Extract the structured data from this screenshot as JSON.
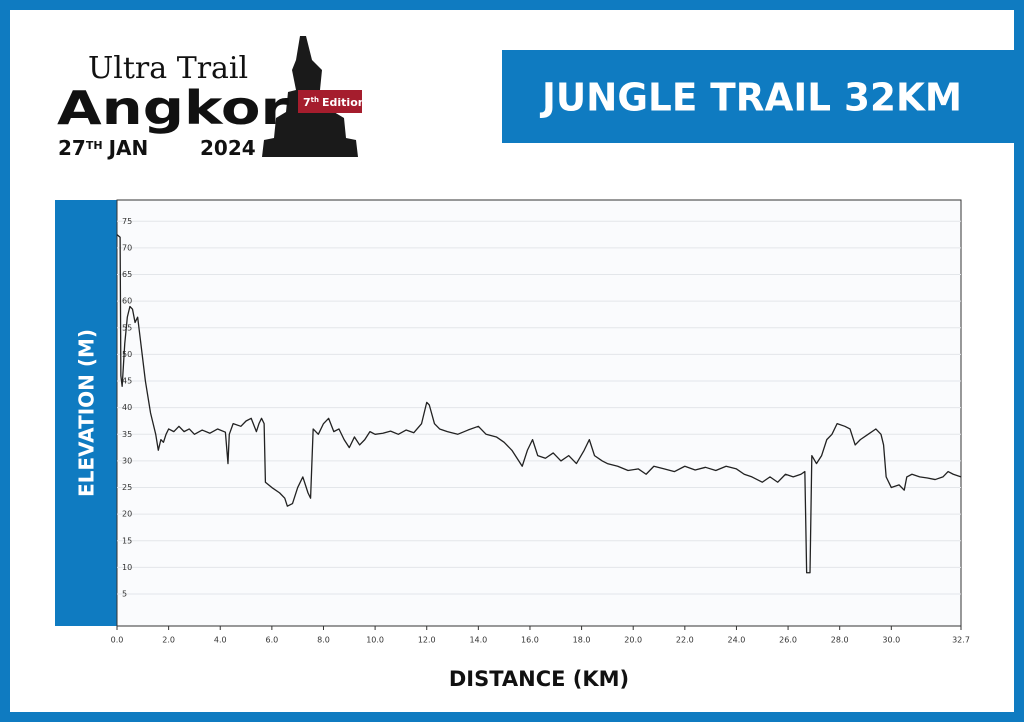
{
  "logo": {
    "line1": "Ultra Trail",
    "line2": "Angkor",
    "edition_number": "7",
    "edition_suffix": "th",
    "edition_word": "Edition",
    "day": "27",
    "day_suffix": "TH",
    "month": "JAN",
    "year": "2024"
  },
  "chart_data": {
    "type": "line",
    "title": "JUNGLE TRAIL 32KM",
    "x_label": "DISTANCE (KM)",
    "y_label": "ELEVATION (M)",
    "color": "#222222",
    "grid": true,
    "xlim": [
      0,
      32.7
    ],
    "ylim": [
      -1,
      79
    ],
    "xticks": [
      {
        "value": 0,
        "label": "0.0"
      },
      {
        "value": 2,
        "label": "2.0"
      },
      {
        "value": 4,
        "label": "4.0"
      },
      {
        "value": 6,
        "label": "6.0"
      },
      {
        "value": 8,
        "label": "8.0"
      },
      {
        "value": 10,
        "label": "10.0"
      },
      {
        "value": 12,
        "label": "12.0"
      },
      {
        "value": 14,
        "label": "14.0"
      },
      {
        "value": 16,
        "label": "16.0"
      },
      {
        "value": 18,
        "label": "18.0"
      },
      {
        "value": 20,
        "label": "20.0"
      },
      {
        "value": 22,
        "label": "22.0"
      },
      {
        "value": 24,
        "label": "24.0"
      },
      {
        "value": 26,
        "label": "26.0"
      },
      {
        "value": 28,
        "label": "28.0"
      },
      {
        "value": 30,
        "label": "30.0"
      },
      32.7
    ],
    "yticks": [
      5,
      10,
      15,
      20,
      25,
      30,
      35,
      40,
      45,
      50,
      55,
      60,
      65,
      70,
      75
    ],
    "x": [
      0,
      0.12,
      0.15,
      0.2,
      0.25,
      0.3,
      0.4,
      0.5,
      0.6,
      0.7,
      0.8,
      0.9,
      1.0,
      1.1,
      1.2,
      1.3,
      1.4,
      1.5,
      1.6,
      1.7,
      1.8,
      1.9,
      2.0,
      2.2,
      2.4,
      2.6,
      2.8,
      3.0,
      3.3,
      3.6,
      3.9,
      4.2,
      4.3,
      4.35,
      4.5,
      4.8,
      5.0,
      5.2,
      5.4,
      5.5,
      5.6,
      5.7,
      5.75,
      6.0,
      6.3,
      6.5,
      6.6,
      6.8,
      7.0,
      7.2,
      7.4,
      7.5,
      7.6,
      7.8,
      8.0,
      8.2,
      8.4,
      8.6,
      8.8,
      9.0,
      9.2,
      9.4,
      9.6,
      9.8,
      10.0,
      10.3,
      10.6,
      10.9,
      11.2,
      11.5,
      11.8,
      12.0,
      12.1,
      12.3,
      12.5,
      12.8,
      13.2,
      13.6,
      14.0,
      14.3,
      14.7,
      15.0,
      15.3,
      15.5,
      15.7,
      15.9,
      16.1,
      16.3,
      16.6,
      16.9,
      17.2,
      17.5,
      17.8,
      18.1,
      18.3,
      18.5,
      18.8,
      19.0,
      19.4,
      19.8,
      20.2,
      20.5,
      20.8,
      21.2,
      21.6,
      22.0,
      22.4,
      22.8,
      23.2,
      23.6,
      24.0,
      24.3,
      24.6,
      25.0,
      25.3,
      25.6,
      25.9,
      26.2,
      26.5,
      26.65,
      26.72,
      26.85,
      26.92,
      27.1,
      27.3,
      27.5,
      27.7,
      27.9,
      28.2,
      28.4,
      28.6,
      28.8,
      29.1,
      29.4,
      29.6,
      29.7,
      29.8,
      30.0,
      30.3,
      30.5,
      30.6,
      30.8,
      31.1,
      31.4,
      31.7,
      32.0,
      32.2,
      32.4,
      32.7
    ],
    "values": [
      72.5,
      72,
      46,
      44,
      48,
      52,
      57,
      59,
      58.5,
      56,
      57,
      53,
      49,
      45,
      42,
      39,
      37,
      35,
      32,
      34,
      33.5,
      35,
      36,
      35.5,
      36.5,
      35.5,
      36,
      35,
      35.8,
      35.2,
      36,
      35.4,
      29.5,
      35,
      37,
      36.5,
      37.5,
      38,
      35.5,
      37,
      38,
      37,
      26,
      25,
      24,
      23,
      21.5,
      22,
      25,
      27,
      24,
      23,
      36,
      35,
      37,
      38,
      35.5,
      36,
      34,
      32.5,
      34.5,
      33,
      34,
      35.5,
      35,
      35.2,
      35.6,
      35,
      35.8,
      35.3,
      37,
      41,
      40.5,
      37,
      36,
      35.5,
      35,
      35.8,
      36.5,
      35,
      34.5,
      33.5,
      32,
      30.5,
      29,
      32,
      34,
      31,
      30.5,
      31.5,
      30,
      31,
      29.5,
      32,
      34,
      31,
      30,
      29.5,
      29,
      28.2,
      28.5,
      27.5,
      29,
      28.5,
      28,
      29,
      28.3,
      28.8,
      28.2,
      29,
      28.5,
      27.5,
      27,
      26,
      27,
      26,
      27.5,
      27,
      27.5,
      28,
      9,
      9,
      31,
      29.5,
      31,
      34,
      35,
      37,
      36.5,
      36,
      33,
      34,
      35,
      36,
      35,
      33,
      27,
      25,
      25.5,
      24.5,
      27,
      27.5,
      27,
      26.8,
      26.5,
      27,
      28,
      27.5,
      27
    ]
  }
}
